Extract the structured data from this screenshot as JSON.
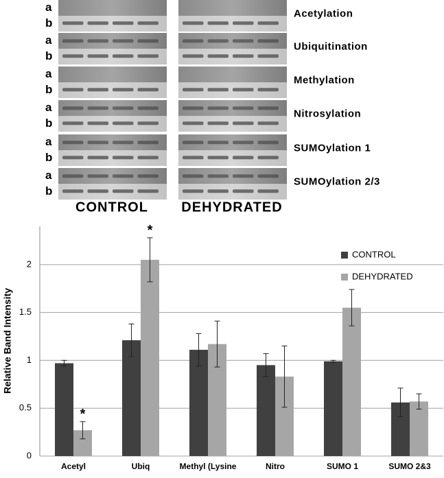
{
  "blot": {
    "groups": [
      "CONTROL",
      "DEHYDRATED"
    ],
    "rows": [
      {
        "label": "Acetylation",
        "lanes": [
          "a",
          "b"
        ]
      },
      {
        "label": "Ubiquitination",
        "lanes": [
          "a",
          "b"
        ]
      },
      {
        "label": "Methylation",
        "lanes": [
          "a",
          "b"
        ]
      },
      {
        "label": "Nitrosylation",
        "lanes": [
          "a",
          "b"
        ]
      },
      {
        "label": "SUMOylation 1",
        "lanes": [
          "a",
          "b"
        ]
      },
      {
        "label": "SUMOylation 2/3",
        "lanes": [
          "a",
          "b"
        ]
      }
    ]
  },
  "chart_data": {
    "type": "bar",
    "y_label": "Relative Band Intensity",
    "categories": [
      "Acetyl",
      "Ubiq",
      "Methyl (Lysine",
      "Nitro",
      "SUMO 1",
      "SUMO 2&3"
    ],
    "series": [
      {
        "name": "CONTROL",
        "color": "#404040",
        "values": [
          0.97,
          1.21,
          1.11,
          0.95,
          0.99,
          0.56
        ],
        "errors": [
          0.03,
          0.17,
          0.17,
          0.12,
          0.01,
          0.15
        ]
      },
      {
        "name": "DEHYDRATED",
        "color": "#a6a6a6",
        "values": [
          0.27,
          2.05,
          1.17,
          0.83,
          1.55,
          0.57
        ],
        "errors": [
          0.09,
          0.23,
          0.24,
          0.32,
          0.19,
          0.08
        ]
      }
    ],
    "annotations": [
      {
        "text": "*",
        "series": "DEHYDRATED",
        "category": "Acetyl"
      },
      {
        "text": "*",
        "series": "DEHYDRATED",
        "category": "Ubiq"
      }
    ],
    "ylim": [
      0,
      2.4
    ],
    "yticks": [
      0,
      0.5,
      1,
      1.5,
      2
    ],
    "grid": true,
    "legend": "upper right"
  }
}
